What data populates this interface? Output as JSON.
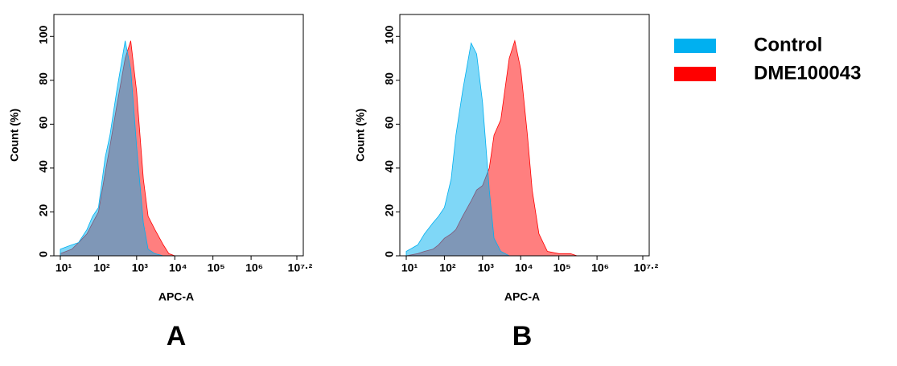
{
  "chart_data": [
    {
      "type": "area",
      "panel": "A",
      "xlabel": "APC-A",
      "ylabel": "Count (%)",
      "xscale": "log",
      "xlim": [
        10,
        15848932
      ],
      "ylim": [
        0,
        110
      ],
      "xticks": [
        {
          "value": 10,
          "label": "10¹"
        },
        {
          "value": 100,
          "label": "10²"
        },
        {
          "value": 1000,
          "label": "10³"
        },
        {
          "value": 10000,
          "label": "10⁴"
        },
        {
          "value": 100000,
          "label": "10⁵"
        },
        {
          "value": 1000000,
          "label": "10⁶"
        },
        {
          "value": 15848932,
          "label": "10⁷·²"
        }
      ],
      "yticks": [
        0,
        20,
        40,
        60,
        80,
        100
      ],
      "x": [
        10,
        20,
        30,
        50,
        70,
        100,
        150,
        200,
        300,
        500,
        700,
        1000,
        1500,
        2000,
        3000,
        5000,
        7000,
        10000,
        15000,
        20000,
        30000,
        50000,
        100000,
        200000,
        300000
      ],
      "series": [
        {
          "color": "#ff0000",
          "values": [
            1,
            3,
            6,
            10,
            15,
            20,
            38,
            50,
            68,
            90,
            98,
            75,
            35,
            18,
            12,
            5,
            1,
            0,
            0,
            0,
            0,
            0,
            0,
            0,
            0
          ]
        },
        {
          "color": "#00b0f0",
          "values": [
            3,
            5,
            6,
            12,
            18,
            22,
            45,
            55,
            75,
            98,
            85,
            50,
            15,
            3,
            1,
            0,
            0,
            0,
            0,
            0,
            0,
            0,
            0,
            0,
            0
          ]
        }
      ]
    },
    {
      "type": "area",
      "panel": "B",
      "xlabel": "APC-A",
      "ylabel": "Count (%)",
      "xscale": "log",
      "xlim": [
        10,
        15848932
      ],
      "ylim": [
        0,
        110
      ],
      "xticks": [
        {
          "value": 10,
          "label": "10¹"
        },
        {
          "value": 100,
          "label": "10²"
        },
        {
          "value": 1000,
          "label": "10³"
        },
        {
          "value": 10000,
          "label": "10⁴"
        },
        {
          "value": 100000,
          "label": "10⁵"
        },
        {
          "value": 1000000,
          "label": "10⁶"
        },
        {
          "value": 15848932,
          "label": "10⁷·²"
        }
      ],
      "yticks": [
        0,
        20,
        40,
        60,
        80,
        100
      ],
      "legend": "right",
      "x": [
        10,
        20,
        30,
        50,
        70,
        100,
        150,
        200,
        300,
        500,
        700,
        1000,
        1500,
        2000,
        3000,
        5000,
        7000,
        10000,
        15000,
        20000,
        30000,
        50000,
        100000,
        200000,
        300000
      ],
      "series": [
        {
          "name": "DME100043",
          "color": "#ff0000",
          "values": [
            0,
            1,
            2,
            3,
            5,
            8,
            10,
            12,
            18,
            25,
            30,
            32,
            40,
            55,
            62,
            90,
            98,
            85,
            55,
            30,
            10,
            2,
            1,
            1,
            0
          ]
        },
        {
          "name": "Control",
          "color": "#00b0f0",
          "values": [
            2,
            5,
            10,
            15,
            18,
            22,
            35,
            55,
            75,
            97,
            92,
            70,
            30,
            8,
            2,
            0,
            0,
            0,
            0,
            0,
            0,
            0,
            0,
            0,
            0
          ]
        }
      ]
    }
  ]
}
